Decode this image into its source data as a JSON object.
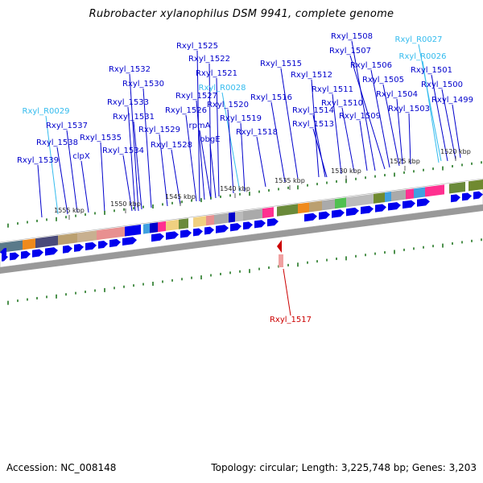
{
  "title": "Rubrobacter xylanophilus DSM 9941, complete genome",
  "footer": {
    "accession": "Accession: NC_008148",
    "summary": "Topology: circular; Length: 3,225,748 bp; Genes: 3,203"
  },
  "colors": {
    "gene_label": "#0000cc",
    "rna_label": "#33bbee",
    "highlight_label": "#cc0000",
    "gene_arrow": "#0000ee",
    "tick": "#227722"
  },
  "kbp_ticks": [
    "1520 kbp",
    "1525 kbp",
    "1530 kbp",
    "1535 kbp",
    "1540 kbp",
    "1545 kbp",
    "1550 kbp",
    "1555 kbp"
  ],
  "gene_labels": [
    {
      "text": "Rxyl_1508",
      "kind": "gene"
    },
    {
      "text": "Rxyl_R0027",
      "kind": "rna"
    },
    {
      "text": "Rxyl_1507",
      "kind": "gene"
    },
    {
      "text": "Rxyl_R0026",
      "kind": "rna"
    },
    {
      "text": "Rxyl_1525",
      "kind": "gene"
    },
    {
      "text": "Rxyl_1522",
      "kind": "gene"
    },
    {
      "text": "Rxyl_1515",
      "kind": "gene"
    },
    {
      "text": "Rxyl_1506",
      "kind": "gene"
    },
    {
      "text": "Rxyl_1501",
      "kind": "gene"
    },
    {
      "text": "Rxyl_1532",
      "kind": "gene"
    },
    {
      "text": "Rxyl_1521",
      "kind": "gene"
    },
    {
      "text": "Rxyl_1512",
      "kind": "gene"
    },
    {
      "text": "Rxyl_1505",
      "kind": "gene"
    },
    {
      "text": "Rxyl_1530",
      "kind": "gene"
    },
    {
      "text": "Rxyl_R0028",
      "kind": "rna"
    },
    {
      "text": "Rxyl_1511",
      "kind": "gene"
    },
    {
      "text": "Rxyl_1500",
      "kind": "gene"
    },
    {
      "text": "Rxyl_1504",
      "kind": "gene"
    },
    {
      "text": "Rxyl_1527",
      "kind": "gene"
    },
    {
      "text": "Rxyl_1516",
      "kind": "gene"
    },
    {
      "text": "Rxyl_1499",
      "kind": "gene"
    },
    {
      "text": "Rxyl_1533",
      "kind": "gene"
    },
    {
      "text": "Rxyl_1520",
      "kind": "gene"
    },
    {
      "text": "Rxyl_1510",
      "kind": "gene"
    },
    {
      "text": "Rxyl_1503",
      "kind": "gene"
    },
    {
      "text": "Rxyl_R0029",
      "kind": "rna"
    },
    {
      "text": "Rxyl_1526",
      "kind": "gene"
    },
    {
      "text": "Rxyl_1514",
      "kind": "gene"
    },
    {
      "text": "Rxyl_1531",
      "kind": "gene"
    },
    {
      "text": "Rxyl_1509",
      "kind": "gene"
    },
    {
      "text": "Rxyl_1519",
      "kind": "gene"
    },
    {
      "text": "rpmA",
      "kind": "gene"
    },
    {
      "text": "Rxyl_1537",
      "kind": "gene"
    },
    {
      "text": "Rxyl_1513",
      "kind": "gene"
    },
    {
      "text": "Rxyl_1529",
      "kind": "gene"
    },
    {
      "text": "Rxyl_1518",
      "kind": "gene"
    },
    {
      "text": "Rxyl_1535",
      "kind": "gene"
    },
    {
      "text": "obgE",
      "kind": "gene"
    },
    {
      "text": "Rxyl_1538",
      "kind": "gene"
    },
    {
      "text": "Rxyl_1528",
      "kind": "gene"
    },
    {
      "text": "Rxyl_1534",
      "kind": "gene"
    },
    {
      "text": "clpX",
      "kind": "gene"
    },
    {
      "text": "Rxyl_1539",
      "kind": "gene"
    },
    {
      "text": "Rxyl_1517",
      "kind": "highlight"
    }
  ]
}
